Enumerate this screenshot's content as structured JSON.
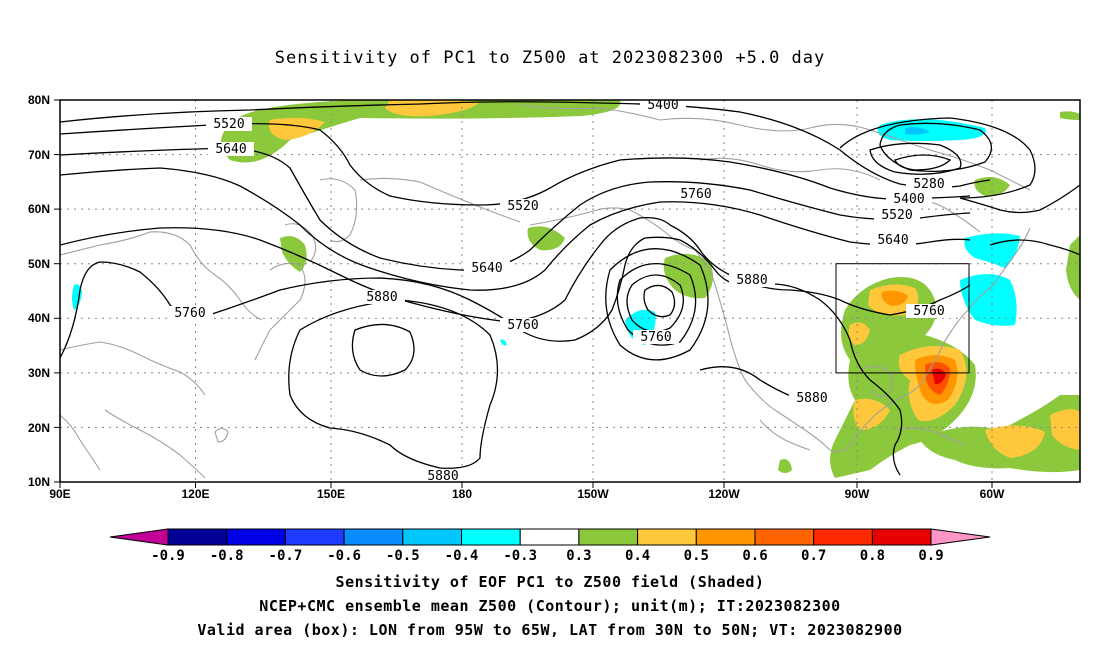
{
  "title": "Sensitivity of PC1 to Z500 at 2023082300 +5.0 day",
  "axes": {
    "lat_ticks": [
      "80N",
      "70N",
      "60N",
      "50N",
      "40N",
      "30N",
      "20N",
      "10N"
    ],
    "lon_ticks": [
      "90E",
      "120E",
      "150E",
      "180",
      "150W",
      "120W",
      "90W",
      "60W"
    ]
  },
  "contour_labels": [
    "5400",
    "5520",
    "5640",
    "5520",
    "5760",
    "5640",
    "5760",
    "5880",
    "5760",
    "5760",
    "5880",
    "5280",
    "5400",
    "5520",
    "5640",
    "5760",
    "5880",
    "5880"
  ],
  "colorbar": {
    "labels": [
      "-0.9",
      "-0.8",
      "-0.7",
      "-0.6",
      "-0.5",
      "-0.4",
      "-0.3",
      "0.3",
      "0.4",
      "0.5",
      "0.6",
      "0.7",
      "0.8",
      "0.9"
    ],
    "colors": [
      "#c20096",
      "#000096",
      "#0000e6",
      "#1e3cff",
      "#0a8cff",
      "#00c8ff",
      "#00ffff",
      "#ffffff",
      "#8cc83c",
      "#ffc83c",
      "#ff9600",
      "#ff6400",
      "#ff2800",
      "#e60000",
      "#ff96c8"
    ]
  },
  "captions": [
    "Sensitivity of EOF PC1 to Z500 field (Shaded)",
    "NCEP+CMC ensemble mean Z500 (Contour); unit(m); IT:2023082300",
    "Valid area (box): LON from 95W to 65W, LAT from 30N to 50N; VT: 2023082900"
  ],
  "colors": {
    "green": "#8cc83c",
    "yellow": "#ffc83c",
    "orange": "#ff9600",
    "red": "#ff3200",
    "cyan": "#00ffff",
    "coast": "#a0a0a0"
  }
}
